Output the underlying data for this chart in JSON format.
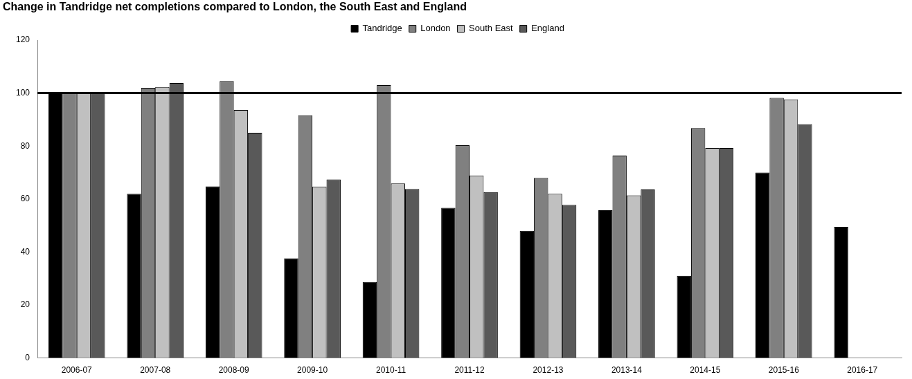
{
  "chart_data": {
    "type": "bar",
    "title": "Change in Tandridge net completions compared to London, the South East and England",
    "categories": [
      "2006-07",
      "2007-08",
      "2008-09",
      "2009-10",
      "2010-11",
      "2011-12",
      "2012-13",
      "2013-14",
      "2014-15",
      "2015-16",
      "2016-17"
    ],
    "series": [
      {
        "name": "Tandridge",
        "color": "#000000",
        "values": [
          100,
          62,
          64.8,
          37.6,
          28.7,
          56.7,
          48,
          55.8,
          31,
          70,
          49.5
        ]
      },
      {
        "name": "London",
        "color": "#808080",
        "values": [
          100,
          102,
          104.5,
          91.6,
          103,
          80.3,
          68,
          76.4,
          86.8,
          98.2,
          null
        ]
      },
      {
        "name": "South East",
        "color": "#c0c0c0",
        "values": [
          100,
          102.3,
          93.6,
          64.7,
          65.9,
          68.9,
          62,
          61.4,
          79.3,
          97.6,
          null
        ]
      },
      {
        "name": "England",
        "color": "#595959",
        "values": [
          100,
          103.8,
          85,
          67.4,
          63.8,
          62.6,
          57.8,
          63.6,
          79.3,
          88.3,
          null
        ]
      }
    ],
    "ylim": [
      0,
      120
    ],
    "yticks": [
      0,
      20,
      40,
      60,
      80,
      100,
      120
    ],
    "ref_lines": [
      {
        "axis": "y",
        "value": 100,
        "color": "#000000"
      }
    ],
    "grid": false,
    "legend": "top"
  }
}
